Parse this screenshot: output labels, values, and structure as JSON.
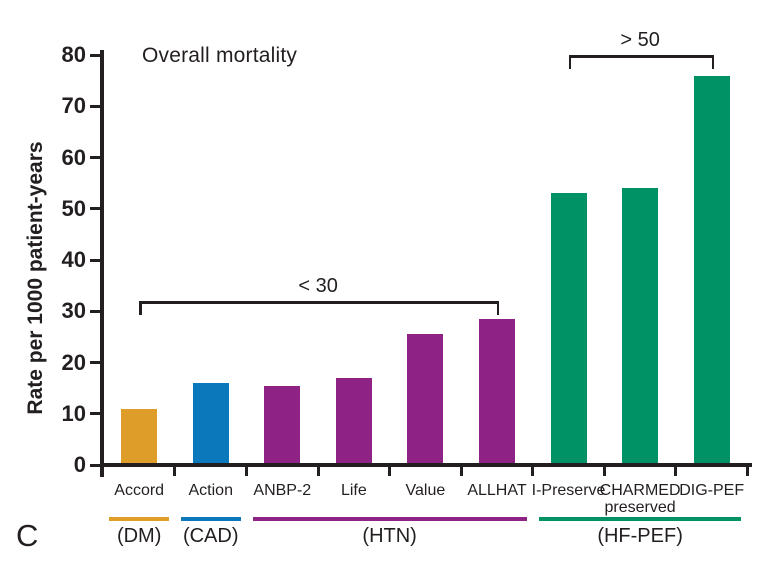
{
  "panel_letter": "C",
  "chart_data": {
    "type": "bar",
    "title": "Overall mortality",
    "xlabel": "",
    "ylabel": "Rate per 1000 patient-years",
    "ylim": [
      0,
      80
    ],
    "yticks": [
      0,
      10,
      20,
      30,
      40,
      50,
      60,
      70,
      80
    ],
    "grid": false,
    "legend": "none",
    "categories": [
      "Accord",
      "Action",
      "ANBP-2",
      "Life",
      "Value",
      "ALLHAT",
      "I-Preserve",
      "CHARMED preserved",
      "DIG-PEF"
    ],
    "values": [
      11,
      16,
      15.5,
      17,
      25.5,
      28.5,
      53,
      54,
      76
    ],
    "bars": [
      {
        "label": "Accord",
        "label2": "",
        "value": 11,
        "group": "DM",
        "color": "#de9c29"
      },
      {
        "label": "Action",
        "label2": "",
        "value": 16,
        "group": "CAD",
        "color": "#0b78bc"
      },
      {
        "label": "ANBP-2",
        "label2": "",
        "value": 15.5,
        "group": "HTN",
        "color": "#8e2285"
      },
      {
        "label": "Life",
        "label2": "",
        "value": 17,
        "group": "HTN",
        "color": "#8e2285"
      },
      {
        "label": "Value",
        "label2": "",
        "value": 25.5,
        "group": "HTN",
        "color": "#8e2285"
      },
      {
        "label": "ALLHAT",
        "label2": "",
        "value": 28.5,
        "group": "HTN",
        "color": "#8e2285"
      },
      {
        "label": "I-Preserve",
        "label2": "",
        "value": 53,
        "group": "HF-PEF",
        "color": "#009264"
      },
      {
        "label": "CHARMED",
        "label2": "preserved",
        "value": 54,
        "group": "HF-PEF",
        "color": "#009264"
      },
      {
        "label": "DIG-PEF",
        "label2": "",
        "value": 76,
        "group": "HF-PEF",
        "color": "#009264"
      }
    ],
    "groups": [
      {
        "label": "(DM)",
        "color": "#de9c29",
        "from": 0,
        "to": 0
      },
      {
        "label": "(CAD)",
        "color": "#0b78bc",
        "from": 1,
        "to": 1
      },
      {
        "label": "(HTN)",
        "color": "#8e2285",
        "from": 2,
        "to": 5
      },
      {
        "label": "(HF-PEF)",
        "color": "#009264",
        "from": 6,
        "to": 8
      }
    ],
    "annotations": [
      {
        "label": "< 30",
        "from": 0,
        "to": 5,
        "at_value": 32
      },
      {
        "label": "> 50",
        "from": 6,
        "to": 8,
        "at_value": 80
      }
    ],
    "axis_color": "#231f20"
  }
}
